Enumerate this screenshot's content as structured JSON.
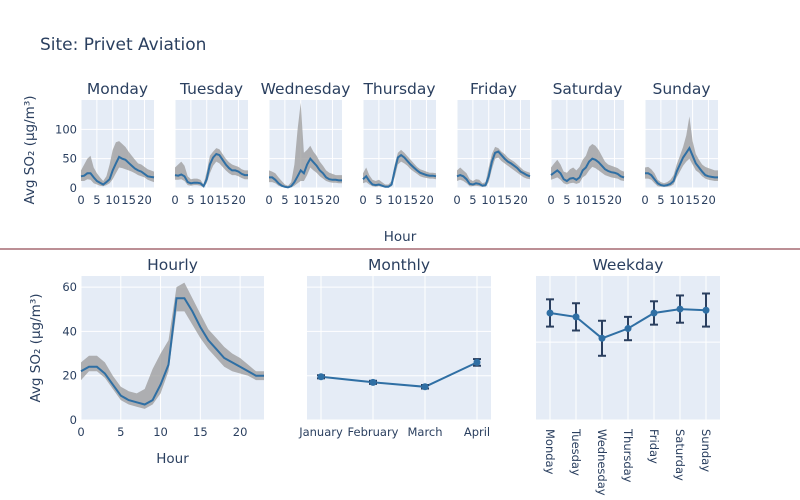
{
  "page_title": "Site: Privet Aviation",
  "divider_color": "#7a1f2b",
  "colors": {
    "plot_bg": "#e5ecf6",
    "grid": "#ffffff",
    "line": "#2f6fa4",
    "band": "#999999",
    "text": "#2a3f5f"
  },
  "chart_data": [
    {
      "type": "line",
      "title": "Monday",
      "xlabel": "",
      "ylabel": "Avg SO₂ (µg/m³)",
      "xlim": [
        0,
        23
      ],
      "ylim": [
        0,
        150
      ],
      "xticks": [
        0,
        5,
        10,
        15,
        20
      ],
      "yticks": [
        0,
        50,
        100
      ],
      "x": [
        0,
        1,
        2,
        3,
        4,
        5,
        6,
        7,
        8,
        9,
        10,
        11,
        12,
        13,
        14,
        15,
        16,
        17,
        18,
        19,
        20,
        21,
        22,
        23
      ],
      "series": [
        {
          "values": [
            20,
            21,
            25,
            25,
            18,
            12,
            9,
            6,
            10,
            15,
            30,
            42,
            53,
            50,
            48,
            43,
            38,
            33,
            30,
            28,
            24,
            20,
            19,
            18
          ],
          "lower": [
            12,
            12,
            15,
            14,
            8,
            6,
            4,
            3,
            5,
            8,
            15,
            25,
            35,
            34,
            32,
            30,
            28,
            25,
            22,
            20,
            18,
            14,
            12,
            10
          ],
          "upper": [
            30,
            40,
            50,
            55,
            35,
            25,
            18,
            12,
            20,
            40,
            65,
            78,
            80,
            75,
            70,
            62,
            55,
            48,
            42,
            40,
            36,
            32,
            30,
            28
          ]
        }
      ]
    },
    {
      "type": "line",
      "title": "Tuesday",
      "xlim": [
        0,
        23
      ],
      "ylim": [
        0,
        150
      ],
      "xticks": [
        0,
        5,
        10,
        15,
        20
      ],
      "yticks": [
        0,
        50,
        100
      ],
      "x": [
        0,
        1,
        2,
        3,
        4,
        5,
        6,
        7,
        8,
        9,
        10,
        11,
        12,
        13,
        14,
        15,
        16,
        17,
        18,
        19,
        20,
        21,
        22,
        23
      ],
      "series": [
        {
          "values": [
            22,
            21,
            23,
            20,
            10,
            8,
            9,
            9,
            8,
            3,
            15,
            40,
            52,
            58,
            56,
            48,
            40,
            34,
            30,
            30,
            28,
            24,
            22,
            22
          ],
          "lower": [
            14,
            14,
            15,
            12,
            5,
            4,
            5,
            5,
            4,
            1,
            8,
            25,
            38,
            45,
            42,
            36,
            30,
            25,
            22,
            22,
            20,
            17,
            15,
            15
          ],
          "upper": [
            35,
            40,
            45,
            38,
            20,
            15,
            16,
            16,
            14,
            6,
            28,
            55,
            62,
            68,
            66,
            58,
            50,
            44,
            40,
            38,
            36,
            32,
            30,
            30
          ]
        }
      ]
    },
    {
      "type": "line",
      "title": "Wednesday",
      "xlim": [
        0,
        23
      ],
      "ylim": [
        0,
        150
      ],
      "xticks": [
        0,
        5,
        10,
        15,
        20
      ],
      "yticks": [
        0,
        50,
        100
      ],
      "x": [
        0,
        1,
        2,
        3,
        4,
        5,
        6,
        7,
        8,
        9,
        10,
        11,
        12,
        13,
        14,
        15,
        16,
        17,
        18,
        19,
        20,
        21,
        22,
        23
      ],
      "series": [
        {
          "values": [
            18,
            18,
            14,
            8,
            4,
            2,
            1,
            3,
            10,
            20,
            30,
            25,
            40,
            50,
            44,
            38,
            30,
            25,
            18,
            15,
            14,
            14,
            13,
            13
          ],
          "lower": [
            10,
            10,
            8,
            4,
            2,
            1,
            0,
            1,
            4,
            8,
            12,
            12,
            22,
            35,
            30,
            26,
            20,
            16,
            12,
            10,
            9,
            9,
            8,
            8
          ],
          "upper": [
            30,
            28,
            25,
            18,
            12,
            6,
            4,
            10,
            40,
            100,
            145,
            60,
            65,
            72,
            62,
            55,
            45,
            38,
            30,
            26,
            24,
            22,
            22,
            22
          ]
        }
      ]
    },
    {
      "type": "line",
      "title": "Thursday",
      "xlim": [
        0,
        23
      ],
      "ylim": [
        0,
        150
      ],
      "xticks": [
        0,
        5,
        10,
        15,
        20
      ],
      "yticks": [
        0,
        50,
        100
      ],
      "x": [
        0,
        1,
        2,
        3,
        4,
        5,
        6,
        7,
        8,
        9,
        10,
        11,
        12,
        13,
        14,
        15,
        16,
        17,
        18,
        19,
        20,
        21,
        22,
        23
      ],
      "series": [
        {
          "values": [
            15,
            20,
            12,
            6,
            5,
            6,
            4,
            2,
            2,
            6,
            30,
            52,
            56,
            52,
            46,
            40,
            35,
            30,
            26,
            24,
            22,
            21,
            21,
            20
          ],
          "lower": [
            8,
            10,
            6,
            3,
            2,
            3,
            2,
            1,
            1,
            3,
            18,
            40,
            45,
            42,
            38,
            32,
            28,
            24,
            20,
            18,
            17,
            16,
            16,
            15
          ],
          "upper": [
            25,
            35,
            22,
            14,
            12,
            14,
            10,
            6,
            6,
            12,
            40,
            60,
            65,
            60,
            54,
            48,
            42,
            36,
            32,
            30,
            28,
            26,
            26,
            25
          ]
        }
      ]
    },
    {
      "type": "line",
      "title": "Friday",
      "xlim": [
        0,
        23
      ],
      "ylim": [
        0,
        150
      ],
      "xticks": [
        0,
        5,
        10,
        15,
        20
      ],
      "yticks": [
        0,
        50,
        100
      ],
      "x": [
        0,
        1,
        2,
        3,
        4,
        5,
        6,
        7,
        8,
        9,
        10,
        11,
        12,
        13,
        14,
        15,
        16,
        17,
        18,
        19,
        20,
        21,
        22,
        23
      ],
      "series": [
        {
          "values": [
            20,
            22,
            20,
            15,
            7,
            6,
            8,
            7,
            4,
            5,
            20,
            45,
            60,
            62,
            56,
            50,
            45,
            42,
            38,
            34,
            28,
            25,
            22,
            20
          ],
          "lower": [
            12,
            14,
            12,
            8,
            3,
            3,
            4,
            3,
            2,
            2,
            10,
            32,
            50,
            52,
            46,
            42,
            38,
            34,
            30,
            26,
            22,
            18,
            16,
            15
          ],
          "upper": [
            30,
            35,
            30,
            25,
            15,
            12,
            15,
            14,
            8,
            10,
            35,
            58,
            70,
            68,
            62,
            58,
            52,
            48,
            45,
            40,
            35,
            30,
            28,
            26
          ]
        }
      ]
    },
    {
      "type": "line",
      "title": "Saturday",
      "xlim": [
        0,
        23
      ],
      "ylim": [
        0,
        150
      ],
      "xticks": [
        0,
        5,
        10,
        15,
        20
      ],
      "yticks": [
        0,
        50,
        100
      ],
      "x": [
        0,
        1,
        2,
        3,
        4,
        5,
        6,
        7,
        8,
        9,
        10,
        11,
        12,
        13,
        14,
        15,
        16,
        17,
        18,
        19,
        20,
        21,
        22,
        23
      ],
      "series": [
        {
          "values": [
            22,
            26,
            30,
            25,
            15,
            12,
            16,
            17,
            14,
            18,
            30,
            35,
            45,
            50,
            48,
            44,
            38,
            32,
            29,
            27,
            26,
            24,
            20,
            18
          ],
          "lower": [
            14,
            16,
            18,
            14,
            8,
            6,
            8,
            9,
            7,
            9,
            18,
            22,
            30,
            36,
            34,
            30,
            26,
            22,
            20,
            18,
            17,
            16,
            13,
            12
          ],
          "upper": [
            35,
            42,
            48,
            40,
            28,
            26,
            32,
            35,
            30,
            36,
            48,
            55,
            70,
            75,
            72,
            65,
            55,
            45,
            40,
            38,
            36,
            34,
            30,
            28
          ]
        }
      ]
    },
    {
      "type": "line",
      "title": "Sunday",
      "xlim": [
        0,
        23
      ],
      "ylim": [
        0,
        150
      ],
      "xticks": [
        0,
        5,
        10,
        15,
        20
      ],
      "yticks": [
        0,
        50,
        100
      ],
      "x": [
        0,
        1,
        2,
        3,
        4,
        5,
        6,
        7,
        8,
        9,
        10,
        11,
        12,
        13,
        14,
        15,
        16,
        17,
        18,
        19,
        20,
        21,
        22,
        23
      ],
      "series": [
        {
          "values": [
            25,
            25,
            22,
            15,
            8,
            5,
            4,
            5,
            7,
            12,
            28,
            40,
            52,
            60,
            68,
            55,
            42,
            35,
            28,
            22,
            20,
            19,
            18,
            18
          ],
          "lower": [
            16,
            16,
            14,
            8,
            3,
            2,
            2,
            2,
            3,
            6,
            18,
            28,
            38,
            45,
            50,
            40,
            30,
            26,
            20,
            16,
            14,
            13,
            12,
            12
          ],
          "upper": [
            35,
            36,
            32,
            25,
            14,
            10,
            8,
            10,
            14,
            22,
            40,
            55,
            70,
            90,
            122,
            80,
            58,
            48,
            40,
            36,
            34,
            32,
            30,
            30
          ]
        }
      ]
    },
    {
      "type": "line",
      "title": "Hourly",
      "xlabel": "Hour",
      "ylabel": "Avg SO₂ (µg/m³)",
      "xlim": [
        0,
        23
      ],
      "ylim": [
        0,
        65
      ],
      "xticks": [
        0,
        5,
        10,
        15,
        20
      ],
      "yticks": [
        0,
        20,
        40,
        60
      ],
      "x": [
        0,
        1,
        2,
        3,
        4,
        5,
        6,
        7,
        8,
        9,
        10,
        11,
        12,
        13,
        14,
        15,
        16,
        17,
        18,
        19,
        20,
        21,
        22,
        23
      ],
      "series": [
        {
          "values": [
            22,
            24,
            24,
            21,
            16,
            11,
            9,
            8,
            7,
            9,
            16,
            25,
            55,
            55,
            49,
            42,
            36,
            32,
            28,
            26,
            24,
            22,
            20,
            20
          ],
          "lower": [
            18,
            22,
            22,
            19,
            14,
            9,
            7,
            6,
            5,
            7,
            12,
            22,
            49,
            49,
            43,
            37,
            32,
            28,
            24,
            22,
            21,
            20,
            18,
            18
          ],
          "upper": [
            26,
            29,
            29,
            26,
            20,
            15,
            13,
            12,
            14,
            23,
            30,
            36,
            60,
            62,
            55,
            48,
            41,
            37,
            33,
            30,
            28,
            25,
            22,
            22
          ]
        }
      ]
    },
    {
      "type": "line",
      "title": "Monthly",
      "categories": [
        "January",
        "February",
        "March",
        "April"
      ],
      "ylim": [
        0,
        65
      ],
      "series": [
        {
          "values": [
            19.5,
            17,
            15,
            26
          ],
          "err_low": [
            18.8,
            16.3,
            14.2,
            24.5
          ],
          "err_high": [
            20.2,
            17.7,
            15.8,
            27.5
          ]
        }
      ]
    },
    {
      "type": "line",
      "title": "Weekday",
      "categories": [
        "Monday",
        "Tuesday",
        "Wednesday",
        "Thursday",
        "Friday",
        "Saturday",
        "Sunday"
      ],
      "ylim": [
        0,
        37
      ],
      "series": [
        {
          "values": [
            27.5,
            26.5,
            21,
            23.5,
            27.5,
            28.5,
            28.2
          ],
          "err_low": [
            24,
            23,
            16.5,
            20.5,
            24.5,
            25,
            24
          ],
          "err_high": [
            31,
            30,
            25.5,
            26.5,
            30.5,
            32,
            32.5
          ]
        }
      ]
    }
  ]
}
